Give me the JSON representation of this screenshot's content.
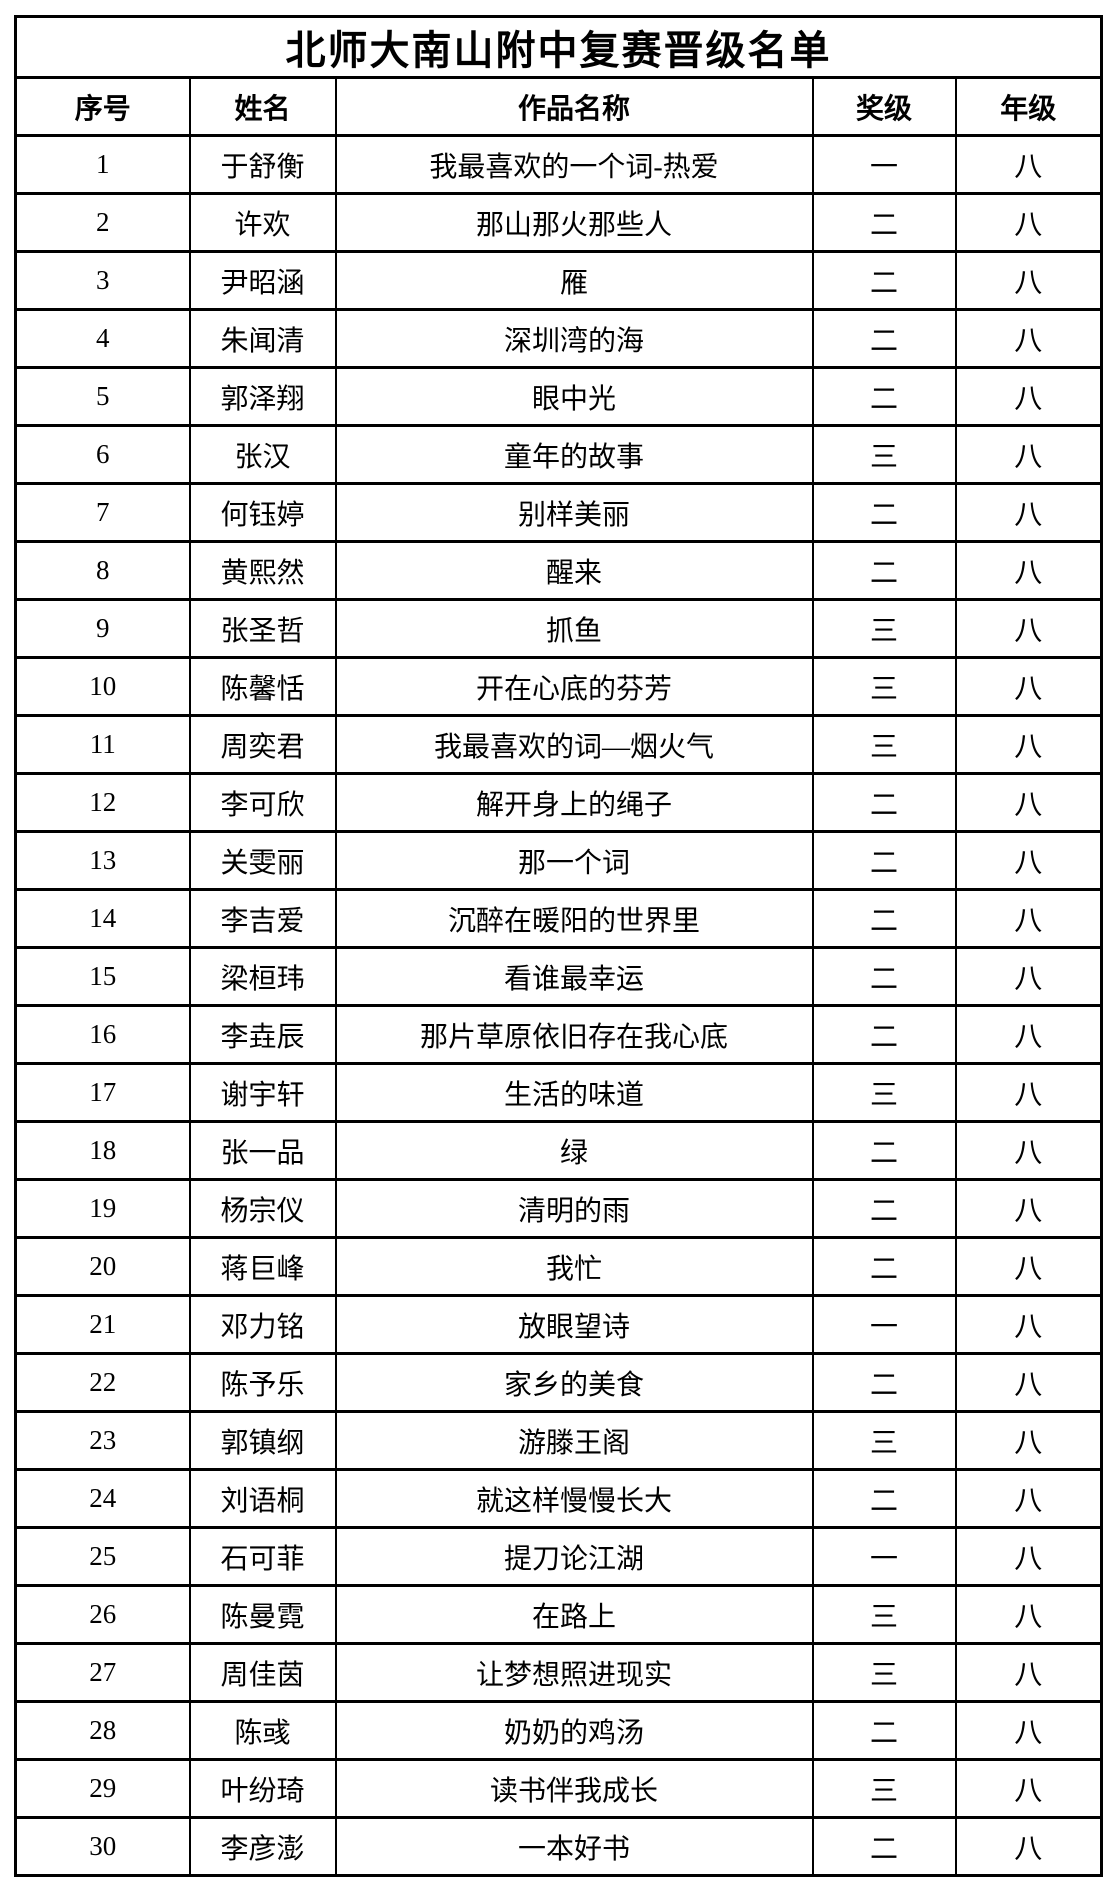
{
  "page": {
    "background_color": "#ffffff",
    "text_color": "#000000",
    "border_color": "#000000"
  },
  "table": {
    "title": "北师大南山附中复赛晋级名单",
    "columns": [
      "序号",
      "姓名",
      "作品名称",
      "奖级",
      "年级"
    ],
    "rows": [
      {
        "no": "1",
        "name": "于舒衡",
        "work": "我最喜欢的一个词-热爱",
        "award": "一",
        "grade": "八"
      },
      {
        "no": "2",
        "name": "许欢",
        "work": "那山那火那些人",
        "award": "二",
        "grade": "八"
      },
      {
        "no": "3",
        "name": "尹昭涵",
        "work": "雁",
        "award": "二",
        "grade": "八"
      },
      {
        "no": "4",
        "name": "朱闻清",
        "work": "深圳湾的海",
        "award": "二",
        "grade": "八"
      },
      {
        "no": "5",
        "name": "郭泽翔",
        "work": "眼中光",
        "award": "二",
        "grade": "八"
      },
      {
        "no": "6",
        "name": "张汉",
        "work": "童年的故事",
        "award": "三",
        "grade": "八"
      },
      {
        "no": "7",
        "name": "何钰婷",
        "work": "别样美丽",
        "award": "二",
        "grade": "八"
      },
      {
        "no": "8",
        "name": "黄熙然",
        "work": "醒来",
        "award": "二",
        "grade": "八"
      },
      {
        "no": "9",
        "name": "张圣哲",
        "work": "抓鱼",
        "award": "三",
        "grade": "八"
      },
      {
        "no": "10",
        "name": "陈馨恬",
        "work": "开在心底的芬芳",
        "award": "三",
        "grade": "八"
      },
      {
        "no": "11",
        "name": "周奕君",
        "work": "我最喜欢的词—烟火气",
        "award": "三",
        "grade": "八"
      },
      {
        "no": "12",
        "name": "李可欣",
        "work": "解开身上的绳子",
        "award": "二",
        "grade": "八"
      },
      {
        "no": "13",
        "name": "关雯丽",
        "work": "那一个词",
        "award": "二",
        "grade": "八"
      },
      {
        "no": "14",
        "name": "李吉爱",
        "work": "沉醉在暖阳的世界里",
        "award": "二",
        "grade": "八"
      },
      {
        "no": "15",
        "name": "梁桓玮",
        "work": "看谁最幸运",
        "award": "二",
        "grade": "八"
      },
      {
        "no": "16",
        "name": "李垚辰",
        "work": "那片草原依旧存在我心底",
        "award": "二",
        "grade": "八"
      },
      {
        "no": "17",
        "name": "谢宇轩",
        "work": "生活的味道",
        "award": "三",
        "grade": "八"
      },
      {
        "no": "18",
        "name": "张一品",
        "work": "绿",
        "award": "二",
        "grade": "八"
      },
      {
        "no": "19",
        "name": "杨宗仪",
        "work": "清明的雨",
        "award": "二",
        "grade": "八"
      },
      {
        "no": "20",
        "name": "蒋巨峰",
        "work": "我忙",
        "award": "二",
        "grade": "八"
      },
      {
        "no": "21",
        "name": "邓力铭",
        "work": "放眼望诗",
        "award": "一",
        "grade": "八"
      },
      {
        "no": "22",
        "name": "陈予乐",
        "work": "家乡的美食",
        "award": "二",
        "grade": "八"
      },
      {
        "no": "23",
        "name": "郭镇纲",
        "work": "游滕王阁",
        "award": "三",
        "grade": "八"
      },
      {
        "no": "24",
        "name": "刘语桐",
        "work": "就这样慢慢长大",
        "award": "二",
        "grade": "八"
      },
      {
        "no": "25",
        "name": "石可菲",
        "work": "提刀论江湖",
        "award": "一",
        "grade": "八"
      },
      {
        "no": "26",
        "name": "陈曼霓",
        "work": "在路上",
        "award": "三",
        "grade": "八"
      },
      {
        "no": "27",
        "name": "周佳茵",
        "work": "让梦想照进现实",
        "award": "三",
        "grade": "八"
      },
      {
        "no": "28",
        "name": "陈彧",
        "work": "奶奶的鸡汤",
        "award": "二",
        "grade": "八"
      },
      {
        "no": "29",
        "name": "叶纷琦",
        "work": "读书伴我成长",
        "award": "三",
        "grade": "八"
      },
      {
        "no": "30",
        "name": "李彦澎",
        "work": "一本好书",
        "award": "二",
        "grade": "八"
      }
    ]
  }
}
